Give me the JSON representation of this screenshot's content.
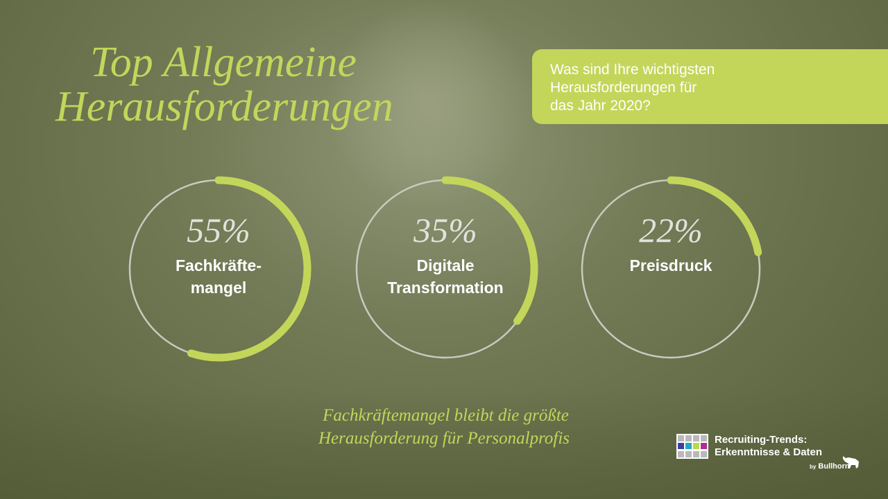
{
  "title": {
    "line1": "Top Allgemeine",
    "line2": "Herausforderungen"
  },
  "question": {
    "line1": "Was sind Ihre wichtigsten",
    "line2": "Herausforderungen für",
    "line3": "das Jahr 2020?"
  },
  "colors": {
    "accent": "#c3d65a",
    "track": "#c9c9c0"
  },
  "chart_data": {
    "type": "donut-progress",
    "items": [
      {
        "value": 55,
        "percent_label": "55%",
        "label_line1": "Fachkräfte-",
        "label_line2": "mangel"
      },
      {
        "value": 35,
        "percent_label": "35%",
        "label_line1": "Digitale",
        "label_line2": "Transformation"
      },
      {
        "value": 22,
        "percent_label": "22%",
        "label_line1": "Preisdruck",
        "label_line2": ""
      }
    ]
  },
  "caption": {
    "line1": "Fachkräftemangel bleibt die größte",
    "line2": "Herausforderung für Personalprofis"
  },
  "logo": {
    "line1": "Recruiting-Trends:",
    "line2": "Erkenntnisse & Daten",
    "by": "by",
    "brand": "Bullhorn"
  }
}
